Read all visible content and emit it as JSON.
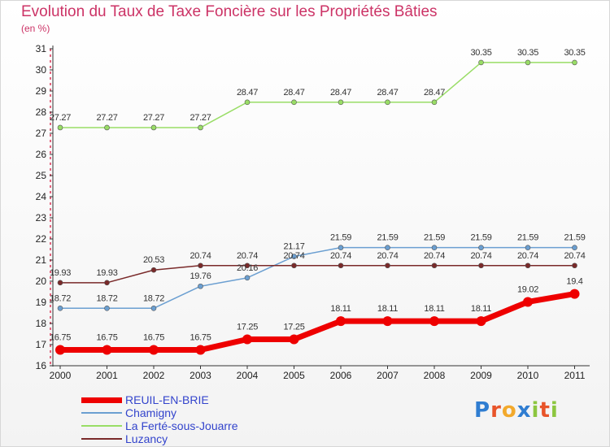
{
  "title": "Evolution du Taux de Taxe Foncière sur les Propriétés Bâties",
  "subtitle": "(en %)",
  "logo": {
    "text": "Proxiti",
    "colors": [
      "#2f7dd1",
      "#e8542a",
      "#f2a92c",
      "#2f7dd1",
      "#8cc63f",
      "#e8542a",
      "#8cc63f"
    ]
  },
  "chart_data": {
    "type": "line",
    "title": "Evolution du Taux de Taxe Foncière sur les Propriétés Bâties",
    "ylabel": "(en %)",
    "xlabel": "",
    "x": [
      "2000",
      "2001",
      "2002",
      "2003",
      "2004",
      "2005",
      "2006",
      "2007",
      "2008",
      "2009",
      "2010",
      "2011"
    ],
    "yticks": [
      "16",
      "17",
      "18",
      "19",
      "20",
      "21",
      "22",
      "23",
      "24",
      "25",
      "26",
      "27",
      "28",
      "29",
      "30",
      "31"
    ],
    "ylim": [
      16,
      31
    ],
    "grid": false,
    "legend": "bottom-left",
    "series": [
      {
        "name": "REUIL-EN-BRIE",
        "color": "#ee0000",
        "width": 7,
        "marker": 6,
        "values": [
          16.75,
          16.75,
          16.75,
          16.75,
          17.25,
          17.25,
          18.11,
          18.11,
          18.11,
          18.11,
          19.02,
          19.4
        ],
        "labels": [
          "16.75",
          "16.75",
          "16.75",
          "16.75",
          "17.25",
          "17.25",
          "18.11",
          "18.11",
          "18.11",
          "18.11",
          "19.02",
          "19.4"
        ]
      },
      {
        "name": "Chamigny",
        "color": "#6b9fd1",
        "width": 1.5,
        "marker": 3,
        "values": [
          18.72,
          18.72,
          18.72,
          19.76,
          20.16,
          21.17,
          21.59,
          21.59,
          21.59,
          21.59,
          21.59,
          21.59
        ],
        "labels": [
          "18.72",
          "18.72",
          "18.72",
          "19.76",
          "20.16",
          "21.17",
          "21.59",
          "21.59",
          "21.59",
          "21.59",
          "21.59",
          "21.59"
        ]
      },
      {
        "name": "La Ferté-sous-Jouarre",
        "color": "#99dd66",
        "width": 1.5,
        "marker": 3,
        "values": [
          27.27,
          27.27,
          27.27,
          27.27,
          28.47,
          28.47,
          28.47,
          28.47,
          28.47,
          30.35,
          30.35,
          30.35
        ],
        "labels": [
          "27.27",
          "27.27",
          "27.27",
          "27.27",
          "28.47",
          "28.47",
          "28.47",
          "28.47",
          "28.47",
          "30.35",
          "30.35",
          "30.35"
        ]
      },
      {
        "name": "Luzancy",
        "color": "#7a2a2a",
        "width": 1.5,
        "marker": 3,
        "values": [
          19.93,
          19.93,
          20.53,
          20.74,
          20.74,
          20.74,
          20.74,
          20.74,
          20.74,
          20.74,
          20.74,
          20.74
        ],
        "labels": [
          "19.93",
          "19.93",
          "20.53",
          "20.74",
          "20.74",
          "20.74",
          "20.74",
          "20.74",
          "20.74",
          "20.74",
          "20.74",
          "20.74"
        ]
      }
    ]
  }
}
